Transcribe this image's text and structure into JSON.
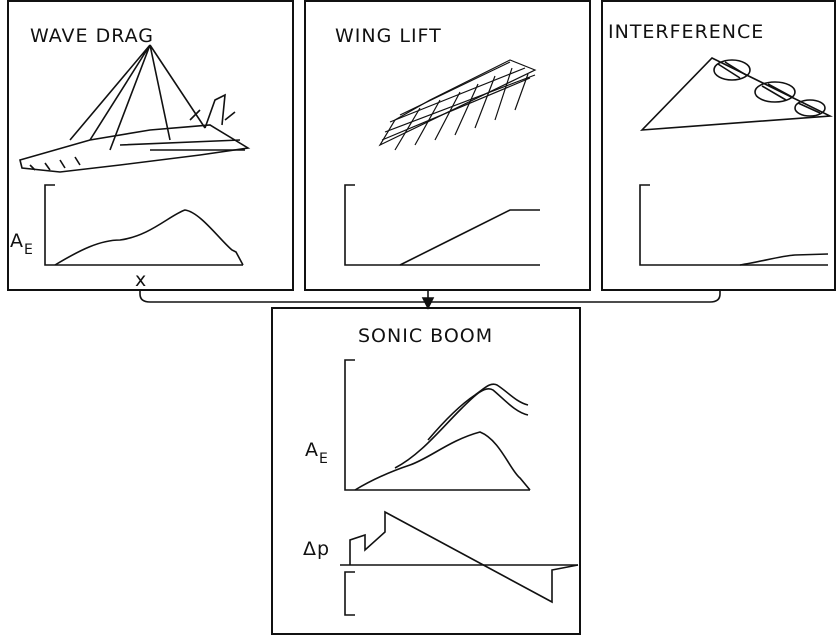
{
  "panels": [
    {
      "title": "WAVE DRAG",
      "y_label": {
        "text": "A",
        "sub": "E"
      },
      "x_label": "x"
    },
    {
      "title": "WING LIFT"
    },
    {
      "title": "INTERFERENCE"
    },
    {
      "title": "SONIC BOOM",
      "y_label": {
        "text": "A",
        "sub": "E"
      },
      "y2_label": "Δp"
    }
  ]
}
